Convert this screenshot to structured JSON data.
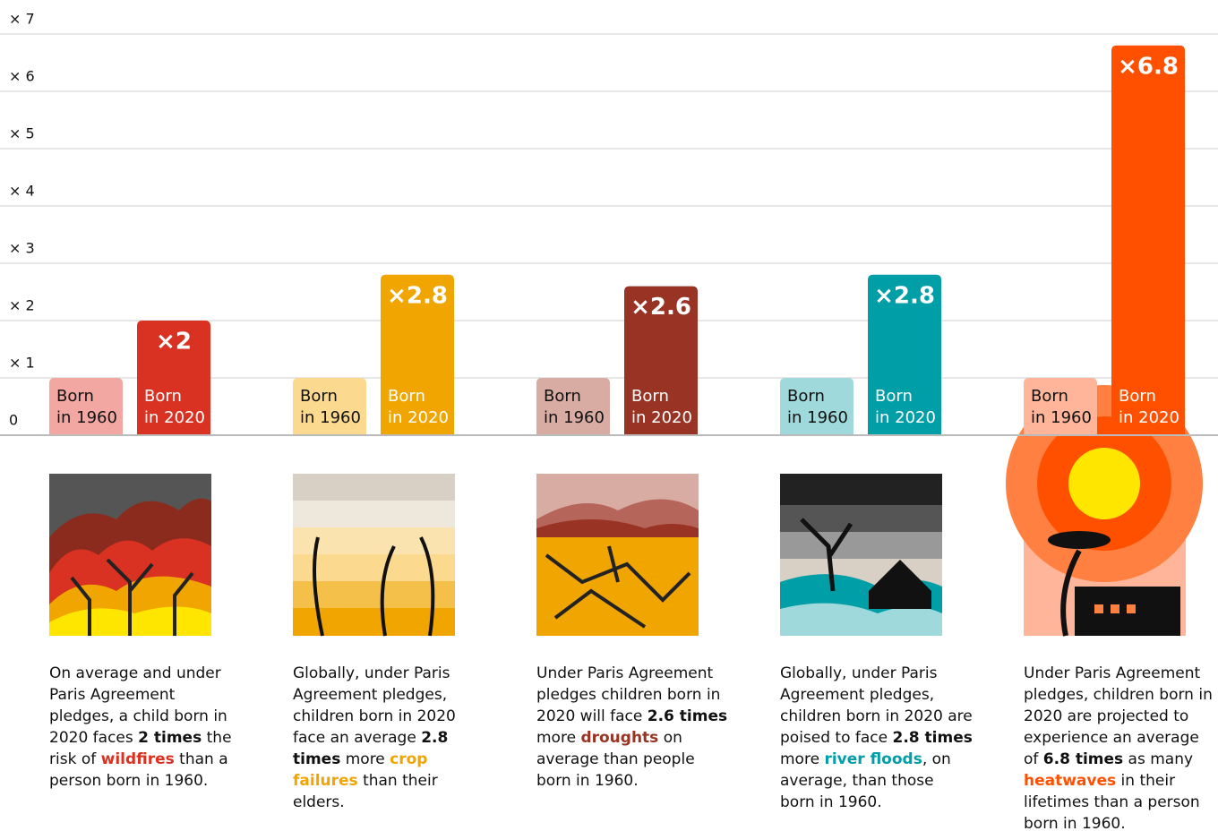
{
  "chart_data": {
    "type": "bar",
    "categories": [
      null,
      null,
      null,
      null,
      null
    ],
    "ylim": [
      0,
      7
    ],
    "yticks": [
      0,
      {
        "value": 1,
        "label": "× 1"
      },
      {
        "value": 2,
        "label": "× 2"
      },
      {
        "value": 3,
        "label": "× 3"
      },
      {
        "value": 4,
        "label": "× 4"
      },
      {
        "value": 5,
        "label": "× 5"
      },
      {
        "value": 6,
        "label": "× 6"
      },
      {
        "value": 7,
        "label": "× 7"
      }
    ],
    "grid": true,
    "series": [
      {
        "name": "Born\nin 1960",
        "colors": [
          "#f2a7a2",
          "#fbd98e",
          "#d8aca2",
          "#9fd9dc",
          "#ffb59a"
        ],
        "label_color": "#111111",
        "values": [
          1,
          1,
          1,
          1,
          1
        ]
      },
      {
        "name": "Born\nin 2020",
        "colors": [
          "#d93222",
          "#f0a500",
          "#993424",
          "#009ea6",
          "#ff5000"
        ],
        "label_color": "#ffffff",
        "values": [
          2,
          2.8,
          2.6,
          2.8,
          6.8
        ],
        "value_labels": [
          "×2",
          "×2.8",
          "×2.6",
          "×2.8",
          "×6.8"
        ]
      }
    ],
    "captions": [
      [
        {
          "text": "On average and under Paris Agreement pledges, a child born in 2020 faces "
        },
        {
          "text": "2 times",
          "bold": true
        },
        {
          "text": " the risk of "
        },
        {
          "text": "wildfires",
          "bold": true,
          "color": "#d93222"
        },
        {
          "text": " than a person born in 1960."
        }
      ],
      [
        {
          "text": "Globally, under Paris Agreement pledges, children born in 2020 face an average "
        },
        {
          "text": "2.8 times",
          "bold": true
        },
        {
          "text": " more "
        },
        {
          "text": "crop failures",
          "bold": true,
          "color": "#f0a500"
        },
        {
          "text": " than their elders."
        }
      ],
      [
        {
          "text": "Under Paris Agreement pledges children born in 2020 will face "
        },
        {
          "text": "2.6 times",
          "bold": true
        },
        {
          "text": " more "
        },
        {
          "text": "droughts",
          "bold": true,
          "color": "#993424"
        },
        {
          "text": " on average than people born in 1960."
        }
      ],
      [
        {
          "text": "Globally, under Paris Agreement pledges, children born in 2020 are poised to face "
        },
        {
          "text": "2.8 times",
          "bold": true
        },
        {
          "text": " more "
        },
        {
          "text": "river floods",
          "bold": true,
          "color": "#009ea6"
        },
        {
          "text": ", on average, than those born in 1960."
        }
      ],
      [
        {
          "text": "Under Paris Agreement pledges, children born in 2020 are projected to experience an average of "
        },
        {
          "text": "6.8 times",
          "bold": true
        },
        {
          "text": " as many "
        },
        {
          "text": "heatwaves",
          "bold": true,
          "color": "#ff5000"
        },
        {
          "text": " in their lifetimes than a person born in 1960."
        }
      ]
    ]
  }
}
